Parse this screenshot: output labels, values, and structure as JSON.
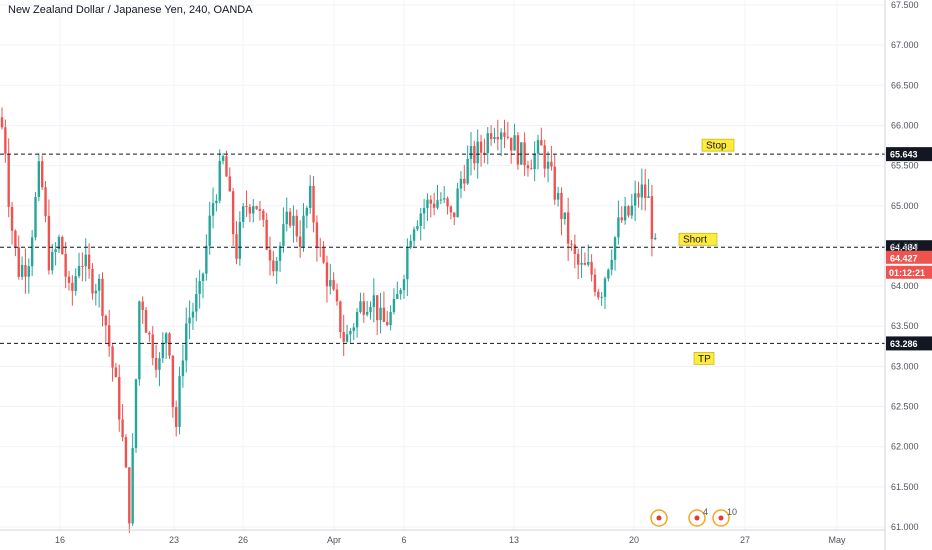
{
  "header": {
    "title": "New Zealand Dollar / Japanese Yen, 240, OANDA"
  },
  "chart_data": {
    "type": "candlestick",
    "title": "New Zealand Dollar / Japanese Yen, 240, OANDA",
    "ylim": [
      60.95,
      67.55
    ],
    "y_ticks": [
      "67.500",
      "67.000",
      "66.500",
      "66.000",
      "65.500",
      "65.000",
      "64.500",
      "64.000",
      "63.500",
      "63.000",
      "62.500",
      "62.000",
      "61.500",
      "61.000"
    ],
    "x_ticks": [
      "16",
      "23",
      "26",
      "Apr",
      "6",
      "13",
      "20",
      "27",
      "May"
    ],
    "up_color": "#26a69a",
    "down_color": "#ef5350",
    "levels": [
      {
        "name": "Stop",
        "value": 65.643,
        "label": "65.643"
      },
      {
        "name": "Short",
        "value": 64.484,
        "label": "64.484"
      },
      {
        "name": "TP",
        "value": 63.286,
        "label": "63.286"
      }
    ],
    "last_price": {
      "value": 64.427,
      "label": "64.427",
      "timer": "01:12:21"
    },
    "annotations": [
      "Stop",
      "Short",
      "TP"
    ],
    "event_badges": [
      "4",
      "10"
    ],
    "waypoints": [
      [
        0,
        66.1
      ],
      [
        5,
        65.8
      ],
      [
        10,
        64.9
      ],
      [
        18,
        64.2
      ],
      [
        28,
        64.3
      ],
      [
        40,
        65.5
      ],
      [
        50,
        64.2
      ],
      [
        60,
        64.6
      ],
      [
        70,
        63.8
      ],
      [
        80,
        64.4
      ],
      [
        90,
        64.1
      ],
      [
        100,
        64.0
      ],
      [
        110,
        63.2
      ],
      [
        120,
        62.4
      ],
      [
        130,
        61.1
      ],
      [
        140,
        64.0
      ],
      [
        148,
        63.4
      ],
      [
        160,
        63.0
      ],
      [
        168,
        63.6
      ],
      [
        175,
        62.1
      ],
      [
        185,
        63.5
      ],
      [
        200,
        63.9
      ],
      [
        212,
        65.0
      ],
      [
        224,
        65.6
      ],
      [
        236,
        64.4
      ],
      [
        245,
        65.0
      ],
      [
        255,
        65.1
      ],
      [
        265,
        64.6
      ],
      [
        275,
        64.3
      ],
      [
        290,
        64.9
      ],
      [
        300,
        64.6
      ],
      [
        310,
        65.1
      ],
      [
        320,
        64.4
      ],
      [
        330,
        64.0
      ],
      [
        345,
        63.3
      ],
      [
        352,
        63.5
      ],
      [
        362,
        63.8
      ],
      [
        372,
        63.9
      ],
      [
        382,
        63.5
      ],
      [
        395,
        63.7
      ],
      [
        405,
        64.3
      ],
      [
        412,
        64.8
      ],
      [
        425,
        65.0
      ],
      [
        440,
        65.1
      ],
      [
        452,
        64.8
      ],
      [
        462,
        65.4
      ],
      [
        472,
        65.6
      ],
      [
        482,
        65.7
      ],
      [
        492,
        66.0
      ],
      [
        502,
        66.0
      ],
      [
        512,
        65.8
      ],
      [
        522,
        65.6
      ],
      [
        532,
        65.6
      ],
      [
        542,
        65.7
      ],
      [
        552,
        65.3
      ],
      [
        562,
        64.9
      ],
      [
        572,
        64.4
      ],
      [
        580,
        64.2
      ],
      [
        590,
        64.2
      ],
      [
        600,
        63.9
      ],
      [
        610,
        64.4
      ],
      [
        620,
        64.8
      ],
      [
        630,
        64.9
      ],
      [
        640,
        65.2
      ],
      [
        648,
        65.1
      ],
      [
        655,
        64.43
      ]
    ]
  }
}
